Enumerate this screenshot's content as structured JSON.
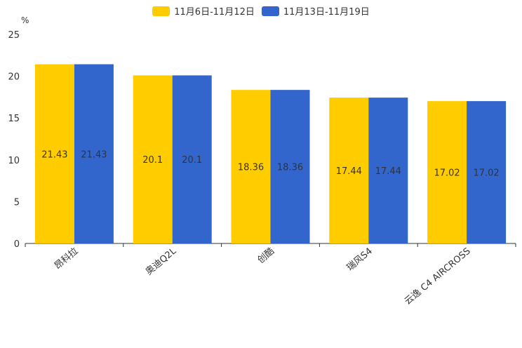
{
  "chart_data": {
    "type": "bar",
    "ylabel": "%",
    "ylim": [
      0,
      25
    ],
    "yticks": [
      0,
      5,
      10,
      15,
      20,
      25
    ],
    "categories": [
      "昂科拉",
      "奥迪Q2L",
      "创酷",
      "瑞风S4",
      "云逸 C4 AIRCROSS"
    ],
    "series": [
      {
        "name": "11月6日-11月12日",
        "color": "#ffcc00",
        "values": [
          21.43,
          20.1,
          18.36,
          17.44,
          17.02
        ]
      },
      {
        "name": "11月13日-11月19日",
        "color": "#3366cc",
        "values": [
          21.43,
          20.1,
          18.36,
          17.44,
          17.02
        ]
      }
    ],
    "legend_position": "top-center",
    "data_labels": "inside-center"
  }
}
